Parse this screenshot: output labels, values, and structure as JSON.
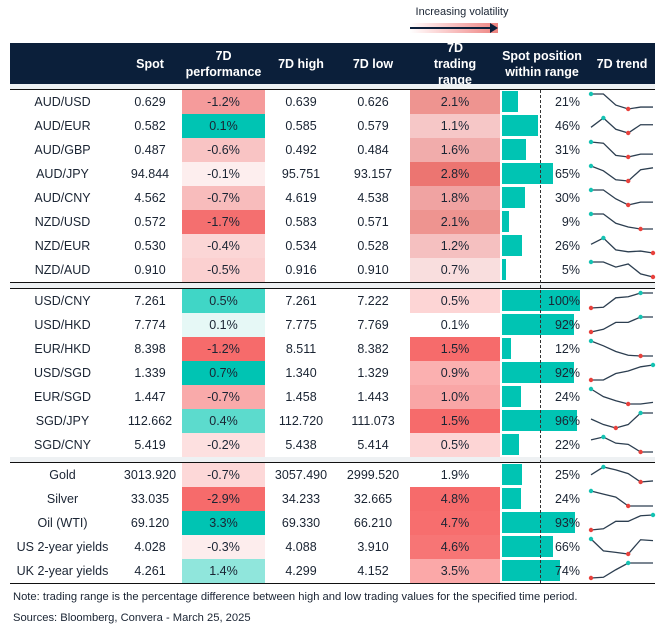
{
  "legend": {
    "label": "Increasing volatility"
  },
  "headers": [
    "",
    "Spot",
    "7D performance",
    "7D high",
    "7D low",
    "7D trading range",
    "Spot position within range",
    "7D trend"
  ],
  "colors": {
    "header": "#0b1f3a",
    "bar": "#00c4b3",
    "max_marker": "#14c3b3",
    "min_marker": "#e8413c",
    "line": "#2c3e50"
  },
  "chart_data": {
    "type": "table",
    "groups": [
      [
        {
          "name": "AUD/USD",
          "spot": "0.629",
          "perf": "-1.2%",
          "perf_color": "#f59b9b",
          "high": "0.639",
          "low": "0.626",
          "range": "2.1%",
          "range_color": "#ee9490",
          "pos": 21,
          "pos_label": "21%",
          "trend": [
            1,
            1,
            0.26,
            0,
            0.13,
            0.13
          ]
        },
        {
          "name": "AUD/EUR",
          "spot": "0.582",
          "perf": "0.1%",
          "perf_color": "#00c4b3",
          "high": "0.585",
          "low": "0.579",
          "range": "1.1%",
          "range_color": "#f6c7c7",
          "pos": 46,
          "pos_label": "46%",
          "trend": [
            0.38,
            1,
            0.25,
            0,
            0.55,
            0.55
          ]
        },
        {
          "name": "AUD/GBP",
          "spot": "0.487",
          "perf": "-0.6%",
          "perf_color": "#f9c4c4",
          "high": "0.492",
          "low": "0.484",
          "range": "1.6%",
          "range_color": "#f1acab",
          "pos": 31,
          "pos_label": "31%",
          "trend": [
            1,
            0.92,
            0.11,
            0,
            0.19,
            0.19
          ]
        },
        {
          "name": "AUD/JPY",
          "spot": "94.844",
          "perf": "-0.1%",
          "perf_color": "#fdeeee",
          "high": "95.751",
          "low": "93.157",
          "range": "2.8%",
          "range_color": "#ec7571",
          "pos": 65,
          "pos_label": "65%",
          "trend": [
            1,
            0.68,
            0.08,
            0,
            0.75,
            0.88
          ]
        },
        {
          "name": "AUD/CNY",
          "spot": "4.562",
          "perf": "-0.7%",
          "perf_color": "#f8bcbc",
          "high": "4.619",
          "low": "4.538",
          "range": "1.8%",
          "range_color": "#f0a3a2",
          "pos": 30,
          "pos_label": "30%",
          "trend": [
            1,
            1,
            0.41,
            0,
            0.19,
            0.19
          ]
        },
        {
          "name": "NZD/USD",
          "spot": "0.572",
          "perf": "-1.7%",
          "perf_color": "#f46f6f",
          "high": "0.583",
          "low": "0.571",
          "range": "2.1%",
          "range_color": "#ee9490",
          "pos": 9,
          "pos_label": "9%",
          "trend": [
            1,
            1,
            0.38,
            0.13,
            0,
            0
          ]
        },
        {
          "name": "NZD/EUR",
          "spot": "0.530",
          "perf": "-0.4%",
          "perf_color": "#fbd6d6",
          "high": "0.534",
          "low": "0.528",
          "range": "1.2%",
          "range_color": "#f5c0c0",
          "pos": 26,
          "pos_label": "26%",
          "trend": [
            0.58,
            1,
            0.21,
            0.08,
            0.13,
            0
          ]
        },
        {
          "name": "NZD/AUD",
          "spot": "0.910",
          "perf": "-0.5%",
          "perf_color": "#fbd0d0",
          "high": "0.916",
          "low": "0.910",
          "range": "0.7%",
          "range_color": "#f9dede",
          "pos": 5,
          "pos_label": "5%",
          "trend": [
            1,
            1,
            0.66,
            0.87,
            0.21,
            0
          ]
        }
      ],
      [
        {
          "name": "USD/CNY",
          "spot": "7.261",
          "perf": "0.5%",
          "perf_color": "#40d6c6",
          "high": "7.261",
          "low": "7.222",
          "range": "0.5%",
          "range_color": "#fdd5d5",
          "pos": 100,
          "pos_label": "100%",
          "trend": [
            0,
            0.05,
            0.68,
            0.75,
            1,
            1
          ]
        },
        {
          "name": "USD/HKD",
          "spot": "7.774",
          "perf": "0.1%",
          "perf_color": "#e6f8f6",
          "high": "7.775",
          "low": "7.769",
          "range": "0.1%",
          "range_color": "#ffffff",
          "pos": 92,
          "pos_label": "92%",
          "trend": [
            0,
            0.18,
            0.64,
            0.64,
            1,
            1
          ]
        },
        {
          "name": "EUR/HKD",
          "spot": "8.398",
          "perf": "-1.2%",
          "perf_color": "#f66b6b",
          "high": "8.511",
          "low": "8.382",
          "range": "1.5%",
          "range_color": "#f66b6b",
          "pos": 12,
          "pos_label": "12%",
          "trend": [
            1,
            0.68,
            0.3,
            0.05,
            0,
            0
          ]
        },
        {
          "name": "USD/SGD",
          "spot": "1.339",
          "perf": "0.7%",
          "perf_color": "#00c4b3",
          "high": "1.340",
          "low": "1.329",
          "range": "0.9%",
          "range_color": "#fbb0b0",
          "pos": 92,
          "pos_label": "92%",
          "trend": [
            0,
            0,
            0.43,
            0.6,
            0.88,
            1
          ]
        },
        {
          "name": "EUR/SGD",
          "spot": "1.447",
          "perf": "-0.7%",
          "perf_color": "#f9aaaa",
          "high": "1.458",
          "low": "1.443",
          "range": "1.0%",
          "range_color": "#f9a6a6",
          "pos": 24,
          "pos_label": "24%",
          "trend": [
            1,
            0.49,
            0.22,
            0,
            0,
            0.11
          ]
        },
        {
          "name": "SGD/JPY",
          "spot": "112.662",
          "perf": "0.4%",
          "perf_color": "#5cdbcd",
          "high": "112.720",
          "low": "111.073",
          "range": "1.5%",
          "range_color": "#f66b6b",
          "pos": 96,
          "pos_label": "96%",
          "trend": [
            0.6,
            0.23,
            0,
            0.23,
            1,
            1
          ]
        },
        {
          "name": "SGD/CNY",
          "spot": "5.419",
          "perf": "-0.2%",
          "perf_color": "#fde0e0",
          "high": "5.438",
          "low": "5.414",
          "range": "0.5%",
          "range_color": "#fdd5d5",
          "pos": 22,
          "pos_label": "22%",
          "trend": [
            0.81,
            1,
            0.59,
            0.51,
            0,
            0
          ]
        }
      ],
      [
        {
          "name": "Gold",
          "spot": "3013.920",
          "perf": "-0.7%",
          "perf_color": "#fdd8d8",
          "high": "3057.490",
          "low": "2999.520",
          "range": "1.9%",
          "range_color": "#ffffff",
          "pos": 25,
          "pos_label": "25%",
          "trend": [
            0.48,
            1,
            0.81,
            0.56,
            0,
            0.07
          ]
        },
        {
          "name": "Silver",
          "spot": "33.035",
          "perf": "-2.9%",
          "perf_color": "#f66b6b",
          "high": "34.233",
          "low": "32.665",
          "range": "4.8%",
          "range_color": "#f66b6b",
          "pos": 24,
          "pos_label": "24%",
          "trend": [
            1,
            0.79,
            0.59,
            0,
            0,
            0
          ]
        },
        {
          "name": "Oil (WTI)",
          "spot": "69.120",
          "perf": "3.3%",
          "perf_color": "#00c4b3",
          "high": "69.330",
          "low": "66.210",
          "range": "4.7%",
          "range_color": "#f76e6e",
          "pos": 93,
          "pos_label": "93%",
          "trend": [
            0,
            0.08,
            0.58,
            0.58,
            0.95,
            1
          ]
        },
        {
          "name": "US 2-year yields",
          "spot": "4.028",
          "perf": "-0.3%",
          "perf_color": "#fdeded",
          "high": "4.088",
          "low": "3.910",
          "range": "4.6%",
          "range_color": "#f77575",
          "pos": 66,
          "pos_label": "66%",
          "trend": [
            1,
            0.21,
            0.11,
            0,
            0.95,
            0.89
          ]
        },
        {
          "name": "UK 2-year yields",
          "spot": "4.261",
          "perf": "1.4%",
          "perf_color": "#90e6dc",
          "high": "4.299",
          "low": "4.152",
          "range": "3.5%",
          "range_color": "#fba8a8",
          "pos": 74,
          "pos_label": "74%",
          "trend": [
            0,
            0.05,
            0.55,
            1,
            1,
            1
          ]
        }
      ]
    ]
  },
  "footer": {
    "note": "Note: trading range is the percentage difference between high and low trading values for the specified time period.",
    "sources": "Sources: Bloomberg, Convera - March 25, 2025"
  }
}
